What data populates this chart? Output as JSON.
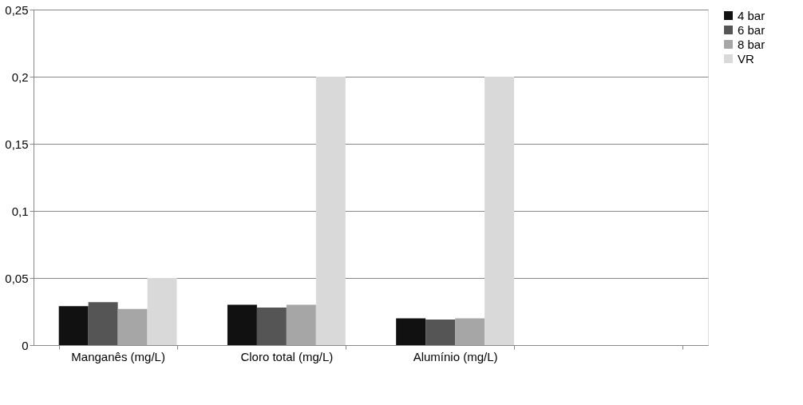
{
  "chart_data": {
    "type": "bar",
    "categories": [
      "Manganês (mg/L)",
      "Cloro total (mg/L)",
      "Alumínio (mg/L)",
      null
    ],
    "series": [
      {
        "name": "4 bar",
        "color": "#111111",
        "values": [
          0.029,
          0.03,
          0.02,
          null
        ]
      },
      {
        "name": "6 bar",
        "color": "#555555",
        "values": [
          0.032,
          0.028,
          0.019,
          null
        ]
      },
      {
        "name": "8 bar",
        "color": "#a6a6a6",
        "values": [
          0.027,
          0.03,
          0.02,
          null
        ]
      },
      {
        "name": "VR",
        "color": "#d9d9d9",
        "values": [
          0.05,
          0.2,
          0.2,
          null
        ]
      }
    ],
    "ylim": [
      0,
      0.25
    ],
    "yticks": [
      {
        "value": 0,
        "label": "0"
      },
      {
        "value": 0.05,
        "label": "0,05"
      },
      {
        "value": 0.1,
        "label": "0,1"
      },
      {
        "value": 0.15,
        "label": "0,15"
      },
      {
        "value": 0.2,
        "label": "0,2"
      },
      {
        "value": 0.25,
        "label": "0,25"
      }
    ],
    "grid": "y",
    "legend": "right"
  }
}
